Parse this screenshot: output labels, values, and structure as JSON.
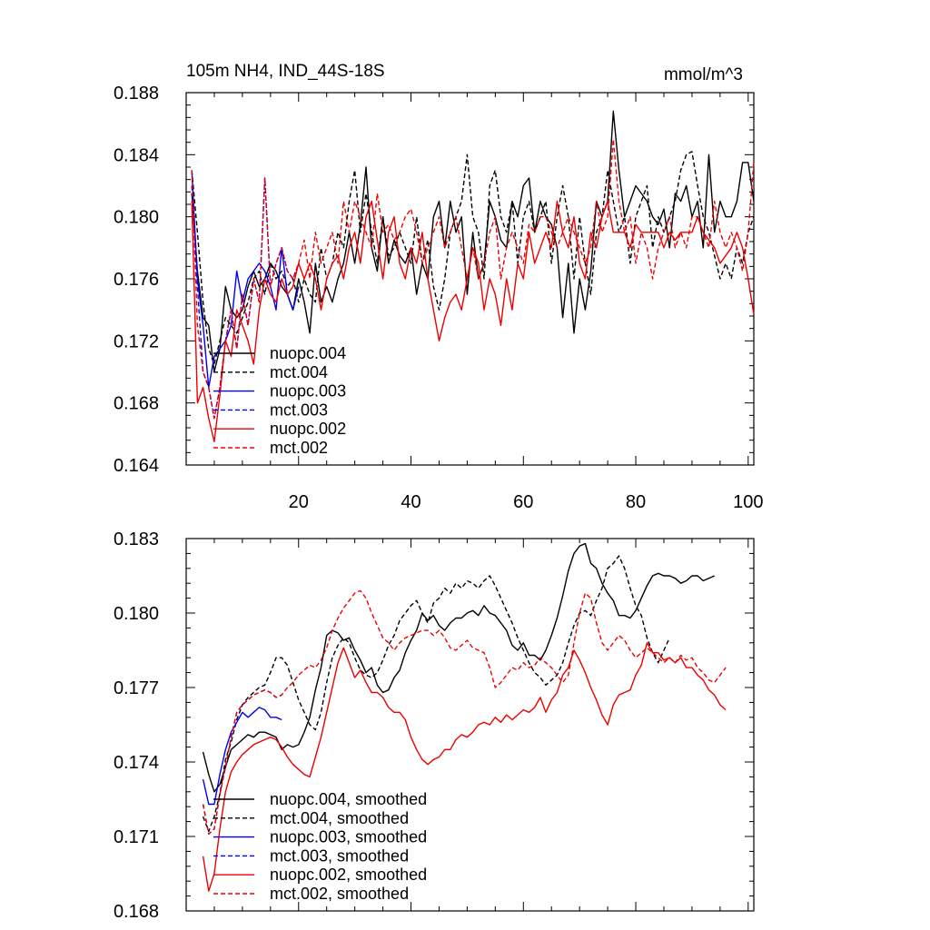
{
  "chart_data": [
    {
      "type": "line",
      "title": "105m NH4, IND_44S-18S",
      "units": "mmol/m^3",
      "xlabel": "",
      "ylabel": "",
      "xlim": [
        0,
        101
      ],
      "ylim": [
        0.164,
        0.188
      ],
      "xticks": [
        20,
        40,
        60,
        80,
        100
      ],
      "xtick_labels": [
        "20",
        "40",
        "60",
        "80",
        "100"
      ],
      "yticks": [
        0.164,
        0.168,
        0.172,
        0.176,
        0.18,
        0.184,
        0.188
      ],
      "ytick_labels": [
        "0.164",
        "0.168",
        "0.172",
        "0.176",
        "0.180",
        "0.184",
        "0.188"
      ],
      "legend_position": "bottom-left",
      "series": [
        {
          "name": "nuopc.004",
          "color": "#000000",
          "dash": "solid",
          "x_start": 1,
          "values": [
            0.1815,
            0.1765,
            0.1735,
            0.173,
            0.17,
            0.1715,
            0.1755,
            0.174,
            0.1735,
            0.174,
            0.1755,
            0.1765,
            0.1755,
            0.176,
            0.177,
            0.1765,
            0.1755,
            0.175,
            0.174,
            0.176,
            0.1745,
            0.1725,
            0.177,
            0.1745,
            0.1755,
            0.1745,
            0.176,
            0.177,
            0.179,
            0.177,
            0.1795,
            0.1832,
            0.178,
            0.1765,
            0.18,
            0.177,
            0.1785,
            0.1775,
            0.177,
            0.178,
            0.175,
            0.177,
            0.176,
            0.18,
            0.181,
            0.178,
            0.181,
            0.179,
            0.18,
            0.175,
            0.179,
            0.176,
            0.177,
            0.181,
            0.18,
            0.1785,
            0.178,
            0.181,
            0.18,
            0.182,
            0.1825,
            0.179,
            0.181,
            0.18,
            0.1795,
            0.178,
            0.1735,
            0.177,
            0.1725,
            0.176,
            0.174,
            0.1765,
            0.181,
            0.18,
            0.181,
            0.1868,
            0.183,
            0.18,
            0.181,
            0.182,
            0.1815,
            0.181,
            0.18,
            0.1795,
            0.1805,
            0.178,
            0.1815,
            0.181,
            0.182,
            0.18,
            0.181,
            0.178,
            0.184,
            0.179,
            0.181,
            0.18,
            0.18,
            0.181,
            0.1835,
            0.1835,
            0.181
          ]
        },
        {
          "name": "mct.004",
          "color": "#000000",
          "dash": "dashed",
          "x_start": 1,
          "values": [
            0.183,
            0.179,
            0.1745,
            0.1715,
            0.1705,
            0.172,
            0.1735,
            0.173,
            0.1725,
            0.1735,
            0.1745,
            0.176,
            0.1765,
            0.175,
            0.177,
            0.176,
            0.1765,
            0.1755,
            0.176,
            0.1745,
            0.176,
            0.175,
            0.1745,
            0.178,
            0.176,
            0.177,
            0.179,
            0.178,
            0.181,
            0.183,
            0.179,
            0.1815,
            0.179,
            0.177,
            0.18,
            0.1775,
            0.178,
            0.179,
            0.178,
            0.177,
            0.18,
            0.177,
            0.1785,
            0.1755,
            0.174,
            0.176,
            0.179,
            0.18,
            0.181,
            0.184,
            0.18,
            0.179,
            0.176,
            0.182,
            0.183,
            0.18,
            0.179,
            0.181,
            0.177,
            0.18,
            0.181,
            0.179,
            0.18,
            0.181,
            0.177,
            0.18,
            0.182,
            0.18,
            0.176,
            0.18,
            0.177,
            0.175,
            0.179,
            0.18,
            0.183,
            0.181,
            0.179,
            0.18,
            0.177,
            0.18,
            0.181,
            0.182,
            0.178,
            0.18,
            0.179,
            0.18,
            0.181,
            0.183,
            0.184,
            0.1842,
            0.182,
            0.18,
            0.179,
            0.1775,
            0.176,
            0.177,
            0.176,
            0.178,
            0.177,
            0.179,
            0.18
          ]
        },
        {
          "name": "nuopc.003",
          "color": "#0000ee",
          "dash": "solid",
          "x_start": 1,
          "values": [
            0.183,
            0.176,
            0.173,
            0.169,
            0.171,
            0.1715,
            0.172,
            0.173,
            0.1765,
            0.1745,
            0.176,
            0.1765,
            0.177,
            0.1765,
            0.1755,
            0.174,
            0.178,
            0.175,
            0.174,
            0.1755
          ]
        },
        {
          "name": "mct.003",
          "color": "#0000ee",
          "dash": "dashed",
          "x_start": 1,
          "values": [
            0.182,
            0.1755,
            0.17,
            0.169,
            0.167,
            0.169,
            0.172,
            0.174,
            0.1715,
            0.175,
            0.173,
            0.176,
            0.1745,
            0.1825,
            0.1755,
            0.177,
            0.178,
            0.1765,
            0.176,
            0.177
          ]
        },
        {
          "name": "nuopc.002",
          "color": "#ee0000",
          "dash": "solid",
          "x_start": 1,
          "values": [
            0.181,
            0.168,
            0.169,
            0.167,
            0.1655,
            0.1685,
            0.172,
            0.171,
            0.174,
            0.173,
            0.172,
            0.1705,
            0.174,
            0.176,
            0.175,
            0.1745,
            0.176,
            0.175,
            0.1755,
            0.177,
            0.176,
            0.177,
            0.176,
            0.174,
            0.176,
            0.177,
            0.1775,
            0.176,
            0.178,
            0.179,
            0.177,
            0.18,
            0.181,
            0.1785,
            0.176,
            0.179,
            0.18,
            0.177,
            0.176,
            0.178,
            0.177,
            0.179,
            0.176,
            0.174,
            0.172,
            0.1735,
            0.1745,
            0.175,
            0.174,
            0.176,
            0.178,
            0.177,
            0.174,
            0.176,
            0.175,
            0.173,
            0.176,
            0.174,
            0.177,
            0.176,
            0.179,
            0.177,
            0.178,
            0.179,
            0.178,
            0.181,
            0.179,
            0.178,
            0.18,
            0.177,
            0.176,
            0.179,
            0.178,
            0.18,
            0.181,
            0.179,
            0.179,
            0.179,
            0.178,
            0.1795,
            0.179,
            0.179,
            0.179,
            0.179,
            0.178,
            0.179,
            0.1785,
            0.179,
            0.179,
            0.179,
            0.18,
            0.179,
            0.1785,
            0.178,
            0.177,
            0.1775,
            0.178,
            0.179,
            0.178,
            0.176,
            0.1737
          ]
        },
        {
          "name": "mct.002",
          "color": "#ee0000",
          "dash": "dashed",
          "x_start": 1,
          "values": [
            0.183,
            0.173,
            0.17,
            0.169,
            0.167,
            0.169,
            0.172,
            0.174,
            0.1715,
            0.175,
            0.173,
            0.176,
            0.1745,
            0.1825,
            0.1755,
            0.177,
            0.178,
            0.1765,
            0.176,
            0.177,
            0.1785,
            0.176,
            0.179,
            0.177,
            0.178,
            0.179,
            0.177,
            0.181,
            0.179,
            0.181,
            0.18,
            0.179,
            0.178,
            0.1815,
            0.179,
            0.1795,
            0.1785,
            0.179,
            0.18,
            0.1805,
            0.179,
            0.177,
            0.178,
            0.179,
            0.18,
            0.178,
            0.179,
            0.18,
            0.178,
            0.176,
            0.178,
            0.176,
            0.177,
            0.179,
            0.18,
            0.176,
            0.178,
            0.179,
            0.178,
            0.177,
            0.1795,
            0.179,
            0.18,
            0.18,
            0.179,
            0.178,
            0.179,
            0.18,
            0.179,
            0.178,
            0.177,
            0.178,
            0.181,
            0.179,
            0.18,
            0.185,
            0.181,
            0.179,
            0.18,
            0.177,
            0.179,
            0.178,
            0.176,
            0.178,
            0.179,
            0.18,
            0.178,
            0.179,
            0.178,
            0.18,
            0.18,
            0.179,
            0.178,
            0.181,
            0.179,
            0.178,
            0.179,
            0.178,
            0.1765,
            0.179,
            0.1835
          ]
        }
      ]
    },
    {
      "type": "line",
      "title": "",
      "xlabel": "",
      "ylabel": "",
      "xlim": [
        0,
        101
      ],
      "ylim": [
        0.168,
        0.183
      ],
      "xticks": [
        20,
        40,
        60,
        80,
        100
      ],
      "xtick_labels": [],
      "yticks": [
        0.168,
        0.171,
        0.174,
        0.177,
        0.18,
        0.183
      ],
      "ytick_labels": [
        "0.168",
        "0.171",
        "0.174",
        "0.177",
        "0.180",
        "0.183"
      ],
      "legend_position": "bottom-left",
      "series": [
        {
          "name": "nuopc.004, smoothed",
          "color": "#000000",
          "dash": "solid",
          "x_start": 3,
          "values": [
            0.1744,
            0.1735,
            0.1728,
            0.1731,
            0.1738,
            0.1745,
            0.1747,
            0.1749,
            0.1751,
            0.175,
            0.1752,
            0.1752,
            0.1751,
            0.175,
            0.1745,
            0.1747,
            0.1746,
            0.1747,
            0.1752,
            0.1758,
            0.1769,
            0.1778,
            0.1791,
            0.1793,
            0.1792,
            0.1789,
            0.179,
            0.1785,
            0.1781,
            0.1776,
            0.1778,
            0.1771,
            0.1768,
            0.1769,
            0.1774,
            0.1777,
            0.1784,
            0.1789,
            0.1793,
            0.18,
            0.1797,
            0.1799,
            0.1795,
            0.1793,
            0.1796,
            0.1798,
            0.1798,
            0.18,
            0.1801,
            0.1799,
            0.1803,
            0.18,
            0.1799,
            0.1796,
            0.1793,
            0.1787,
            0.1785,
            0.1788,
            0.1783,
            0.1783,
            0.1781,
            0.1785,
            0.1791,
            0.1798,
            0.1807,
            0.1817,
            0.1824,
            0.1827,
            0.1828,
            0.182,
            0.1818,
            0.1812,
            0.1808,
            0.1805,
            0.1799,
            0.1799,
            0.1798,
            0.1801,
            0.1806,
            0.1811,
            0.1815,
            0.1816,
            0.1815,
            0.1815,
            0.1814,
            0.1812,
            0.1813,
            0.1815,
            0.1815,
            0.1813,
            0.1814,
            0.1815
          ]
        },
        {
          "name": "mct.004, smoothed",
          "color": "#000000",
          "dash": "dashed",
          "x_start": 3,
          "values": [
            0.1718,
            0.1712,
            0.1718,
            0.1727,
            0.1741,
            0.1748,
            0.1757,
            0.1763,
            0.1766,
            0.1768,
            0.177,
            0.1771,
            0.1776,
            0.1782,
            0.1782,
            0.1779,
            0.1772,
            0.1765,
            0.176,
            0.1755,
            0.1753,
            0.176,
            0.1772,
            0.1782,
            0.1787,
            0.179,
            0.1788,
            0.1782,
            0.1777,
            0.1775,
            0.1774,
            0.1776,
            0.1781,
            0.1787,
            0.1791,
            0.1797,
            0.18,
            0.1803,
            0.1805,
            0.18,
            0.1796,
            0.1804,
            0.1806,
            0.181,
            0.1808,
            0.1812,
            0.181,
            0.1813,
            0.1812,
            0.181,
            0.1813,
            0.1815,
            0.1811,
            0.1806,
            0.1801,
            0.1796,
            0.179,
            0.1785,
            0.178,
            0.1776,
            0.1774,
            0.1771,
            0.1773,
            0.1775,
            0.178,
            0.1788,
            0.1795,
            0.18,
            0.1801,
            0.1799,
            0.1805,
            0.181,
            0.1818,
            0.182,
            0.1823,
            0.1818,
            0.181,
            0.1803,
            0.1799,
            0.179,
            0.1784,
            0.178,
            0.1785,
            0.179
          ]
        },
        {
          "name": "nuopc.003, smoothed",
          "color": "#0000ee",
          "dash": "solid",
          "x_start": 3,
          "values": [
            0.1733,
            0.1723,
            0.1723,
            0.1735,
            0.1745,
            0.1752,
            0.1756,
            0.176,
            0.1758,
            0.176,
            0.1762,
            0.1761,
            0.1758,
            0.1758,
            0.1757
          ]
        },
        {
          "name": "mct.003, smoothed",
          "color": "#0000ee",
          "dash": "dashed",
          "x_start": 3,
          "values": [
            0.1723,
            0.1711,
            0.1713,
            0.1727,
            0.1738,
            0.175,
            0.176,
            0.1763,
            0.1765,
            0.1767,
            0.1768,
            0.1769,
            0.1768,
            0.1766,
            0.1767
          ]
        },
        {
          "name": "nuopc.002, smoothed",
          "color": "#ee0000",
          "dash": "solid",
          "x_start": 3,
          "values": [
            0.1702,
            0.1688,
            0.1695,
            0.1713,
            0.1728,
            0.1736,
            0.174,
            0.1743,
            0.1745,
            0.1747,
            0.1748,
            0.1749,
            0.175,
            0.1749,
            0.1746,
            0.1742,
            0.1739,
            0.1737,
            0.1735,
            0.1734,
            0.1742,
            0.175,
            0.176,
            0.177,
            0.178,
            0.1786,
            0.178,
            0.1774,
            0.1777,
            0.1772,
            0.1768,
            0.1768,
            0.1766,
            0.1762,
            0.176,
            0.176,
            0.1757,
            0.175,
            0.1745,
            0.1741,
            0.1739,
            0.1741,
            0.1742,
            0.1745,
            0.1745,
            0.1749,
            0.1751,
            0.175,
            0.1752,
            0.1755,
            0.1756,
            0.1755,
            0.1758,
            0.1756,
            0.1759,
            0.1757,
            0.1759,
            0.1761,
            0.176,
            0.1762,
            0.1766,
            0.176,
            0.1765,
            0.1768,
            0.1775,
            0.1778,
            0.1785,
            0.1781,
            0.1776,
            0.177,
            0.1765,
            0.1759,
            0.1755,
            0.1763,
            0.1767,
            0.1768,
            0.1769,
            0.1775,
            0.1779,
            0.1788,
            0.1784,
            0.1784,
            0.1781,
            0.1782,
            0.178,
            0.1782,
            0.1778,
            0.1778,
            0.1775,
            0.1773,
            0.1769,
            0.1767,
            0.1763,
            0.1761
          ]
        },
        {
          "name": "mct.002, smoothed",
          "color": "#ee0000",
          "dash": "dashed",
          "x_start": 3,
          "values": [
            0.1723,
            0.1711,
            0.1713,
            0.1727,
            0.1738,
            0.175,
            0.176,
            0.1763,
            0.1765,
            0.1767,
            0.1768,
            0.1769,
            0.1768,
            0.1766,
            0.1767,
            0.177,
            0.1772,
            0.1775,
            0.1777,
            0.1779,
            0.1778,
            0.1781,
            0.1786,
            0.1793,
            0.1798,
            0.1802,
            0.1805,
            0.1808,
            0.1809,
            0.1806,
            0.18,
            0.1795,
            0.179,
            0.1788,
            0.1785,
            0.1788,
            0.179,
            0.1791,
            0.1792,
            0.1793,
            0.1793,
            0.1791,
            0.1793,
            0.179,
            0.1786,
            0.1785,
            0.1787,
            0.1789,
            0.1786,
            0.1785,
            0.1784,
            0.1778,
            0.177,
            0.1772,
            0.1775,
            0.1778,
            0.1777,
            0.178,
            0.1778,
            0.1779,
            0.1782,
            0.178,
            0.1778,
            0.1775,
            0.1772,
            0.1775,
            0.1788,
            0.18,
            0.1808,
            0.1806,
            0.1796,
            0.1788,
            0.1785,
            0.1788,
            0.1791,
            0.1789,
            0.1785,
            0.1782,
            0.1784,
            0.1786,
            0.1784,
            0.1782,
            0.178,
            0.1782,
            0.178,
            0.1783,
            0.1781,
            0.1782,
            0.1778,
            0.1776,
            0.1773,
            0.1772,
            0.1775,
            0.1778
          ]
        }
      ]
    }
  ]
}
